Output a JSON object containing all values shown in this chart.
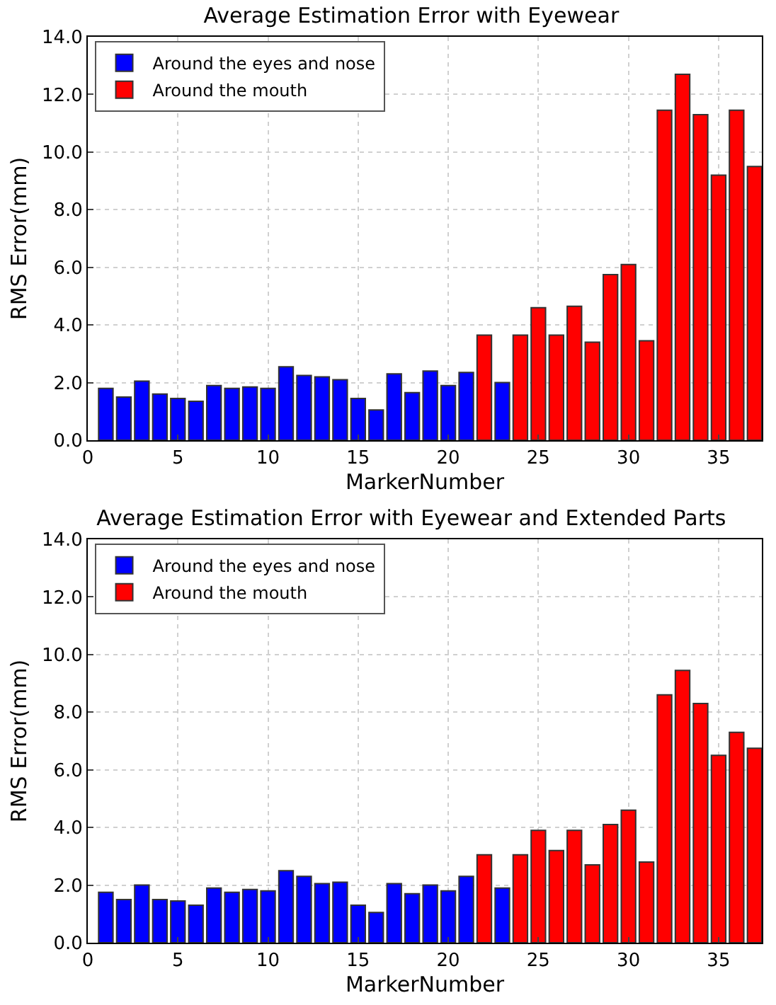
{
  "chart_data": [
    {
      "type": "bar",
      "title": "Average Estimation Error with Eyewear",
      "xlabel": "MarkerNumber",
      "ylabel": "RMS Error(mm)",
      "x": [
        1,
        2,
        3,
        4,
        5,
        6,
        7,
        8,
        9,
        10,
        11,
        12,
        13,
        14,
        15,
        16,
        17,
        18,
        19,
        20,
        21,
        22,
        23,
        24,
        25,
        26,
        27,
        28,
        29,
        30,
        31,
        32,
        33,
        34,
        35,
        36,
        37
      ],
      "series": [
        {
          "name": "Around the eyes and nose",
          "color": "#0000ff",
          "values": [
            1.8,
            1.5,
            2.05,
            1.6,
            1.45,
            1.35,
            1.9,
            1.8,
            1.85,
            1.8,
            2.55,
            2.25,
            2.2,
            2.1,
            1.45,
            1.05,
            2.3,
            1.65,
            2.4,
            1.9,
            2.35,
            null,
            2.0,
            null,
            null,
            null,
            null,
            null,
            null,
            null,
            null,
            null,
            null,
            null,
            null,
            null,
            null
          ]
        },
        {
          "name": "Around the mouth",
          "color": "#ff0000",
          "values": [
            null,
            null,
            null,
            null,
            null,
            null,
            null,
            null,
            null,
            null,
            null,
            null,
            null,
            null,
            null,
            null,
            null,
            null,
            null,
            null,
            null,
            3.65,
            null,
            3.65,
            4.6,
            3.65,
            4.65,
            3.4,
            5.75,
            6.1,
            3.45,
            11.45,
            12.7,
            11.3,
            9.2,
            11.45,
            9.5
          ]
        }
      ],
      "xlim": [
        0,
        37.4
      ],
      "xticks": [
        0,
        5,
        10,
        15,
        20,
        25,
        30,
        35
      ],
      "ylim": [
        0,
        14
      ],
      "yticks": [
        {
          "value": 0,
          "label": "0.0"
        },
        {
          "value": 2,
          "label": "2.0"
        },
        {
          "value": 4,
          "label": "4.0"
        },
        {
          "value": 6,
          "label": "6.0"
        },
        {
          "value": 8,
          "label": "8.0"
        },
        {
          "value": 10,
          "label": "10.0"
        },
        {
          "value": 12,
          "label": "12.0"
        },
        {
          "value": 14,
          "label": "14.0"
        }
      ],
      "grid": true,
      "legend": "top left"
    },
    {
      "type": "bar",
      "title": "Average Estimation Error with Eyewear and Extended Parts",
      "xlabel": "MarkerNumber",
      "ylabel": "RMS Error(mm)",
      "x": [
        1,
        2,
        3,
        4,
        5,
        6,
        7,
        8,
        9,
        10,
        11,
        12,
        13,
        14,
        15,
        16,
        17,
        18,
        19,
        20,
        21,
        22,
        23,
        24,
        25,
        26,
        27,
        28,
        29,
        30,
        31,
        32,
        33,
        34,
        35,
        36,
        37
      ],
      "series": [
        {
          "name": "Around the eyes and nose",
          "color": "#0000ff",
          "values": [
            1.75,
            1.5,
            2.0,
            1.5,
            1.45,
            1.3,
            1.9,
            1.75,
            1.85,
            1.8,
            2.5,
            2.3,
            2.05,
            2.1,
            1.3,
            1.05,
            2.05,
            1.7,
            2.0,
            1.8,
            2.3,
            null,
            1.9,
            null,
            null,
            null,
            null,
            null,
            null,
            null,
            null,
            null,
            null,
            null,
            null,
            null,
            null
          ]
        },
        {
          "name": "Around the mouth",
          "color": "#ff0000",
          "values": [
            null,
            null,
            null,
            null,
            null,
            null,
            null,
            null,
            null,
            null,
            null,
            null,
            null,
            null,
            null,
            null,
            null,
            null,
            null,
            null,
            null,
            3.05,
            null,
            3.05,
            3.9,
            3.2,
            3.9,
            2.7,
            4.1,
            4.6,
            2.8,
            8.6,
            9.45,
            8.3,
            6.5,
            7.3,
            6.75
          ]
        }
      ],
      "xlim": [
        0,
        37.4
      ],
      "xticks": [
        0,
        5,
        10,
        15,
        20,
        25,
        30,
        35
      ],
      "ylim": [
        0,
        14
      ],
      "yticks": [
        {
          "value": 0,
          "label": "0.0"
        },
        {
          "value": 2,
          "label": "2.0"
        },
        {
          "value": 4,
          "label": "4.0"
        },
        {
          "value": 6,
          "label": "6.0"
        },
        {
          "value": 8,
          "label": "8.0"
        },
        {
          "value": 10,
          "label": "10.0"
        },
        {
          "value": 12,
          "label": "12.0"
        },
        {
          "value": 14,
          "label": "14.0"
        }
      ],
      "grid": true,
      "legend": "top left"
    }
  ]
}
